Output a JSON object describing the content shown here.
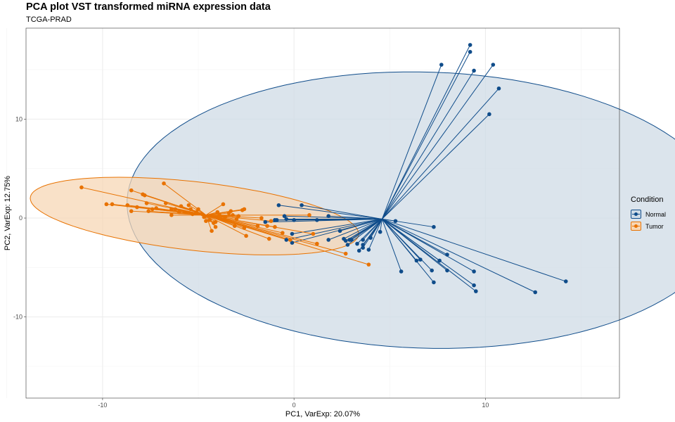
{
  "title": "PCA plot VST transformed miRNA expression data",
  "subtitle": "TCGA-PRAD",
  "colors": {
    "normal": "#0f4c8a",
    "tumor": "#e87200",
    "normal_fill": "#cfdbe6",
    "tumor_fill": "#f7d7b5"
  },
  "chart_data": {
    "type": "scatter",
    "title": "PCA plot VST transformed miRNA expression data",
    "subtitle": "TCGA-PRAD",
    "xlabel": "PC1, VarExp: 20.07%",
    "ylabel": "PC2, VarExp: 12.75%",
    "xlim": [
      -14,
      17
    ],
    "ylim": [
      -18.2,
      19.2
    ],
    "xticks": [
      -10,
      0,
      10
    ],
    "yticks": [
      -10,
      0,
      10
    ],
    "grid": true,
    "legend_title": "Condition",
    "legend_position": "right",
    "series": [
      {
        "name": "Normal",
        "color": "#0f4c8a",
        "centroid": [
          4.6,
          -0.1
        ],
        "ellipse": {
          "center": [
            6.9,
            0.8
          ],
          "rx": 13.9,
          "ry": 15.7,
          "angle_deg": 78
        },
        "points": [
          [
            9.2,
            17.5
          ],
          [
            9.2,
            16.8
          ],
          [
            7.7,
            15.5
          ],
          [
            9.4,
            14.9
          ],
          [
            10.4,
            15.5
          ],
          [
            10.7,
            13.1
          ],
          [
            10.2,
            10.5
          ],
          [
            7.3,
            -0.9
          ],
          [
            14.2,
            -6.4
          ],
          [
            12.6,
            -7.5
          ],
          [
            9.5,
            -7.4
          ],
          [
            9.4,
            -6.8
          ],
          [
            9.4,
            -5.4
          ],
          [
            8.0,
            -5.3
          ],
          [
            8.0,
            -3.7
          ],
          [
            7.6,
            -4.3
          ],
          [
            7.2,
            -5.3
          ],
          [
            7.3,
            -6.5
          ],
          [
            6.6,
            -4.2
          ],
          [
            6.4,
            -4.3
          ],
          [
            5.6,
            -5.4
          ],
          [
            5.3,
            -0.3
          ],
          [
            4.5,
            -1.4
          ],
          [
            4.0,
            -2.0
          ],
          [
            3.9,
            -3.2
          ],
          [
            3.6,
            -2.2
          ],
          [
            3.6,
            -2.7
          ],
          [
            3.4,
            -3.3
          ],
          [
            3.6,
            -3.0
          ],
          [
            3.3,
            -2.6
          ],
          [
            3.0,
            -2.2
          ],
          [
            2.8,
            -2.7
          ],
          [
            2.9,
            -2.2
          ],
          [
            2.6,
            -2.1
          ],
          [
            2.7,
            -2.3
          ],
          [
            2.4,
            -1.3
          ],
          [
            1.8,
            -2.2
          ],
          [
            1.8,
            0.2
          ],
          [
            1.2,
            -0.2
          ],
          [
            0.4,
            1.3
          ],
          [
            0.0,
            -0.2
          ],
          [
            -0.1,
            -1.6
          ],
          [
            -0.1,
            -2.5
          ],
          [
            -0.4,
            -2.2
          ],
          [
            -0.9,
            -0.2
          ],
          [
            -0.8,
            1.3
          ],
          [
            -1.0,
            -0.2
          ],
          [
            -1.5,
            -0.4
          ],
          [
            -0.4,
            -0.1
          ],
          [
            -0.5,
            0.2
          ]
        ]
      },
      {
        "name": "Tumor",
        "color": "#e87200",
        "centroid": [
          -4.6,
          0.3
        ],
        "ellipse": {
          "center": [
            -5.2,
            0.2
          ],
          "rx": 8.8,
          "ry": 3.4,
          "angle_deg": -14
        },
        "points": [
          [
            -11.1,
            3.1
          ],
          [
            -9.8,
            1.4
          ],
          [
            -9.5,
            1.4
          ],
          [
            -8.7,
            1.3
          ],
          [
            -8.5,
            2.8
          ],
          [
            -8.5,
            0.7
          ],
          [
            -8.2,
            1.1
          ],
          [
            -7.9,
            2.4
          ],
          [
            -7.8,
            2.3
          ],
          [
            -7.7,
            1.5
          ],
          [
            -7.6,
            0.7
          ],
          [
            -7.4,
            0.9
          ],
          [
            -7.2,
            1.0
          ],
          [
            -6.8,
            3.5
          ],
          [
            -6.7,
            1.5
          ],
          [
            -6.4,
            0.9
          ],
          [
            -6.4,
            0.3
          ],
          [
            -6.2,
            0.9
          ],
          [
            -6.0,
            0.6
          ],
          [
            -5.9,
            1.2
          ],
          [
            -5.7,
            0.6
          ],
          [
            -5.5,
            1.3
          ],
          [
            -5.4,
            0.9
          ],
          [
            -5.3,
            0.4
          ],
          [
            -5.1,
            0.6
          ],
          [
            -5.0,
            0.9
          ],
          [
            -4.8,
            0.4
          ],
          [
            -4.7,
            0.1
          ],
          [
            -4.6,
            -0.3
          ],
          [
            -4.4,
            -0.2
          ],
          [
            -4.2,
            -0.5
          ],
          [
            -4.1,
            -0.9
          ],
          [
            -4.0,
            0.6
          ],
          [
            -3.9,
            0.3
          ],
          [
            -3.7,
            1.4
          ],
          [
            -3.6,
            0.1
          ],
          [
            -3.4,
            0.5
          ],
          [
            -3.3,
            0.7
          ],
          [
            -3.2,
            0.3
          ],
          [
            -3.1,
            -0.8
          ],
          [
            -3.0,
            -0.1
          ],
          [
            -2.9,
            0.2
          ],
          [
            -2.7,
            0.8
          ],
          [
            -2.6,
            0.9
          ],
          [
            -2.6,
            -1.0
          ],
          [
            -2.5,
            -1.8
          ],
          [
            -1.9,
            -0.8
          ],
          [
            -1.7,
            0.0
          ],
          [
            -1.4,
            -0.8
          ],
          [
            -1.3,
            -2.1
          ],
          [
            -1.0,
            -0.9
          ],
          [
            -0.6,
            -1.5
          ],
          [
            -0.2,
            -2.2
          ],
          [
            1.0,
            -1.6
          ],
          [
            1.2,
            -2.6
          ],
          [
            2.7,
            -3.6
          ],
          [
            3.9,
            -4.7
          ],
          [
            -4.3,
            -1.3
          ],
          [
            -4.1,
            -0.4
          ],
          [
            0.8,
            0.3
          ],
          [
            -1.2,
            -0.3
          ]
        ]
      }
    ]
  }
}
